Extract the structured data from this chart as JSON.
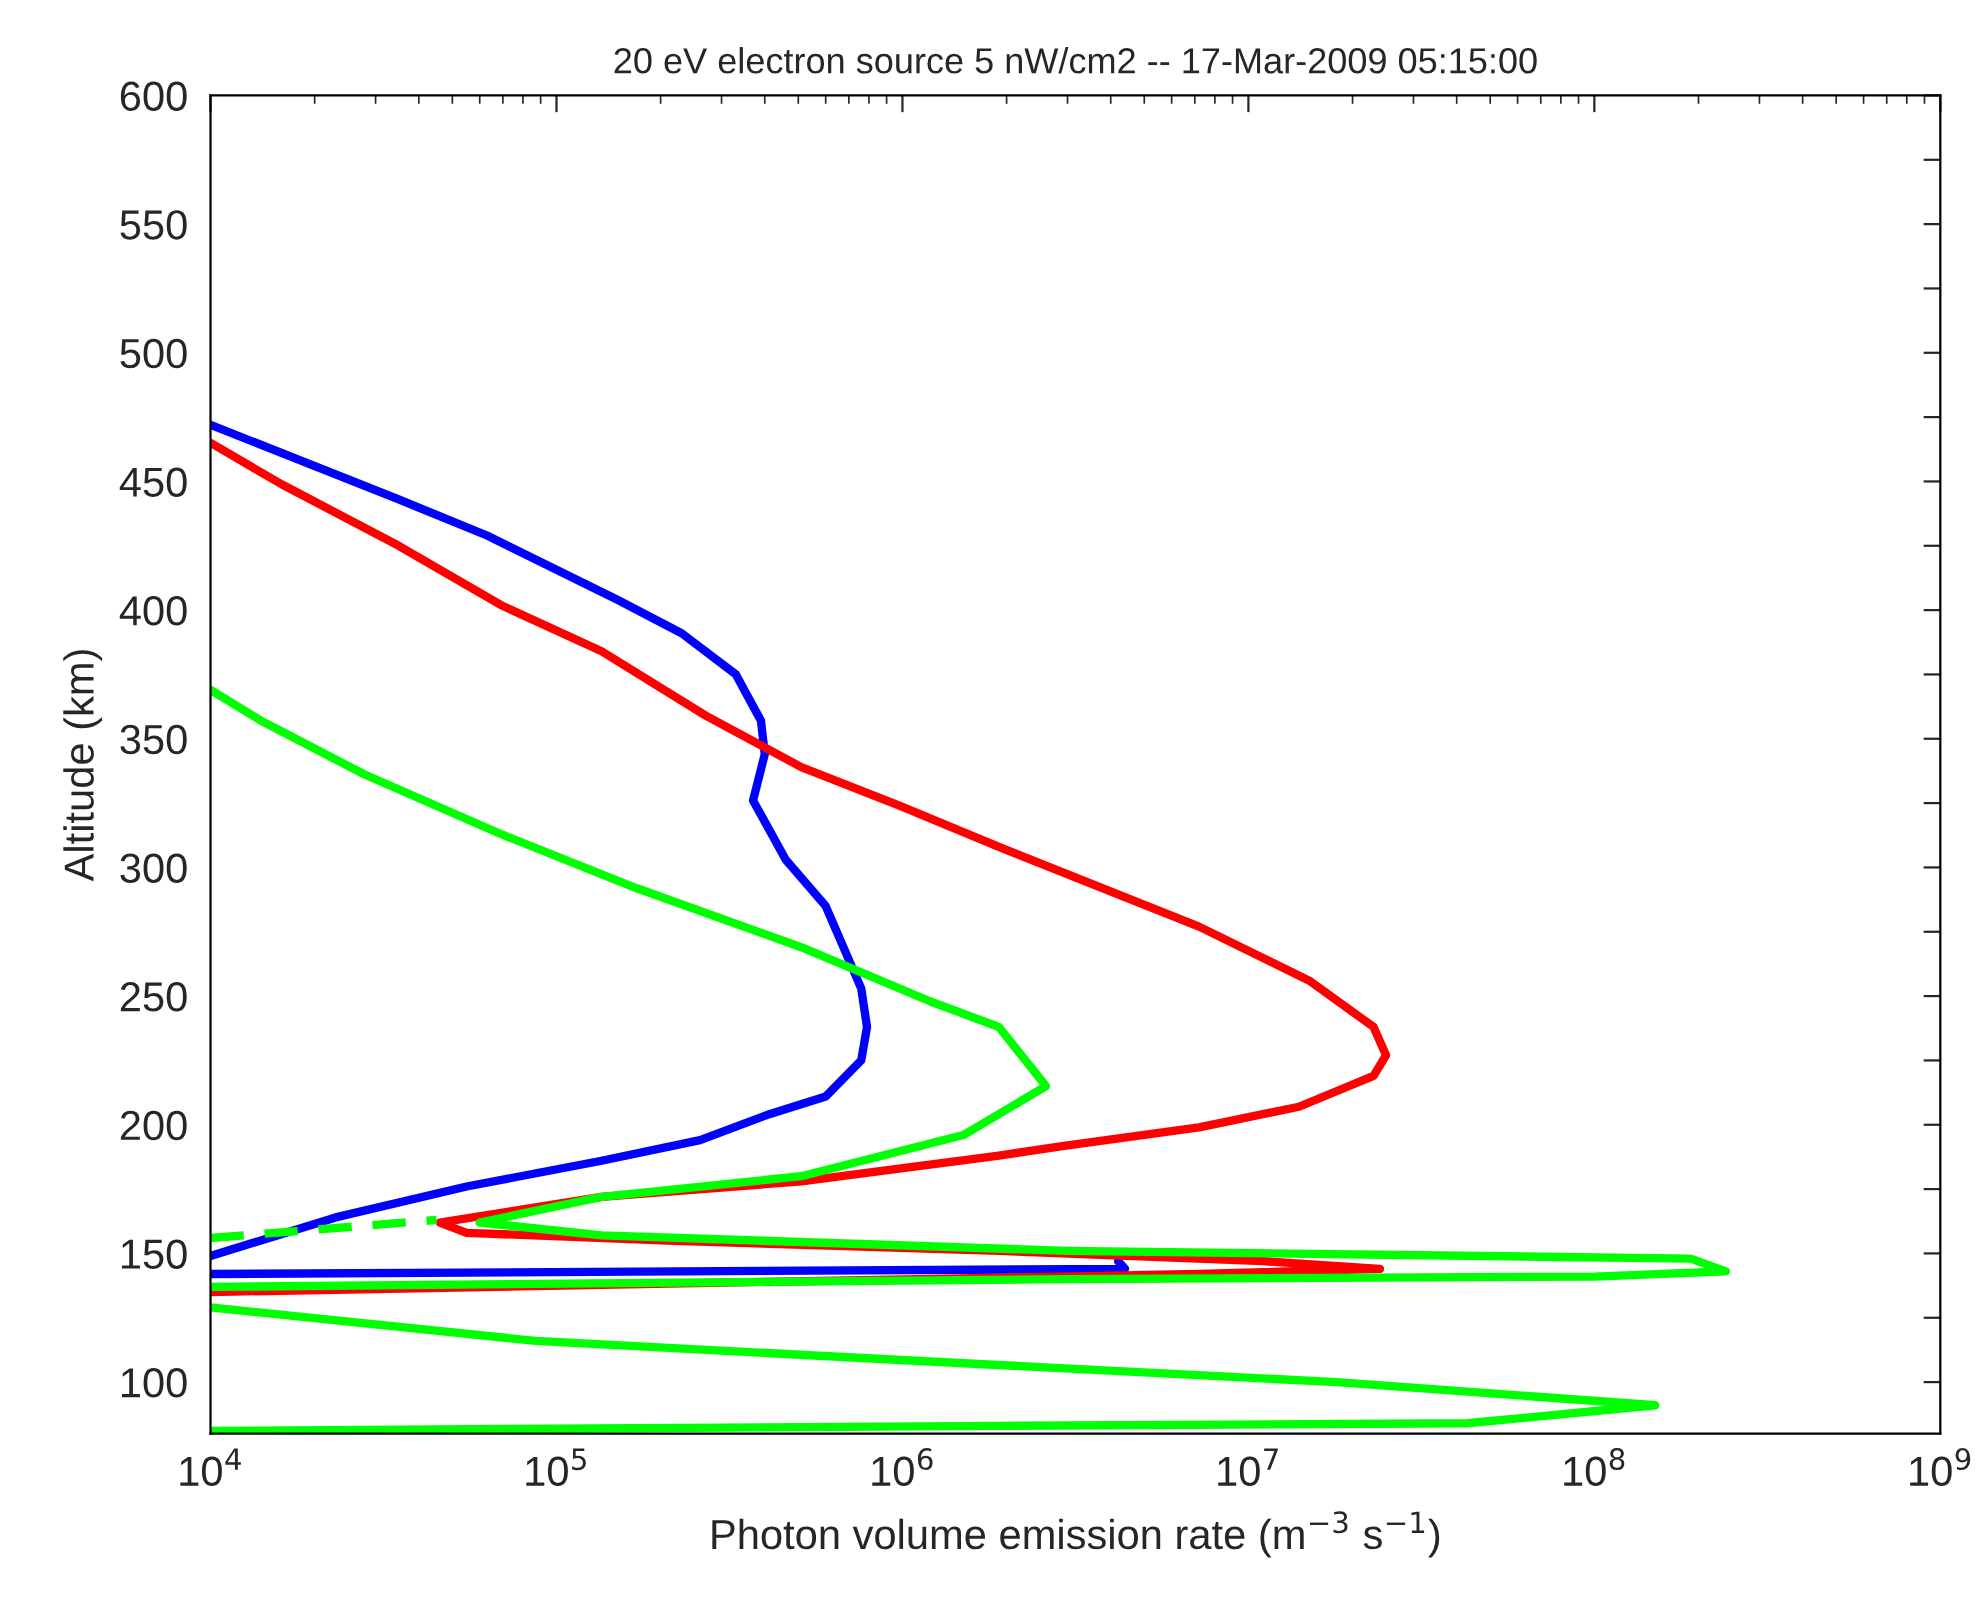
{
  "chart_data": {
    "type": "line",
    "title": "20 eV electron source 5 nW/cm2 -- 17-Mar-2009 05:15:00",
    "xlabel": "Photon volume emission rate (m$^{−3}$ s$^{−1}$)",
    "ylabel": "Altitude (km)",
    "log": "x",
    "xlim": [
      10000,
      1000000000
    ],
    "ylim": [
      80,
      600
    ],
    "xticks": [
      {
        "value": 10000,
        "label": "10$^{4}$"
      },
      {
        "value": 100000,
        "label": "10$^{5}$"
      },
      {
        "value": 1000000,
        "label": "10$^{6}$"
      },
      {
        "value": 10000000,
        "label": "10$^{7}$"
      },
      {
        "value": 100000000,
        "label": "10$^{8}$"
      },
      {
        "value": 1000000000,
        "label": "10$^{9}$"
      }
    ],
    "yticks": [
      100,
      {
        "value": 125,
        "label": null
      },
      150,
      {
        "value": 175,
        "label": null
      },
      200,
      {
        "value": 225,
        "label": null
      },
      250,
      {
        "value": 275,
        "label": null
      },
      300,
      {
        "value": 325,
        "label": null
      },
      350,
      {
        "value": 375,
        "label": null
      },
      400,
      {
        "value": 425,
        "label": null
      },
      450,
      {
        "value": 475,
        "label": null
      },
      500,
      {
        "value": 525,
        "label": null
      },
      550,
      {
        "value": 575,
        "label": null
      },
      600
    ],
    "series": [
      {
        "color": "#0000ff",
        "line_style": "solid",
        "x": [
          10000,
          35000,
          63000,
          150000,
          230000,
          330000,
          390000,
          400000,
          370000,
          460000,
          600000,
          760000,
          790000,
          760000,
          600000,
          410000,
          260000,
          135000,
          55000,
          23000,
          10000,
          null,
          10000,
          4400000,
          4200000
        ],
        "values": [
          472,
          443,
          429,
          404,
          391,
          375,
          357,
          344,
          326,
          303,
          285,
          253,
          238,
          225,
          211,
          204,
          194,
          186,
          176,
          164,
          149,
          null,
          142,
          144,
          147
        ]
      },
      {
        "color": "#ff0000",
        "line_style": "solid",
        "x": [
          10000,
          16000,
          35000,
          69000,
          135000,
          270000,
          510000,
          980000,
          1900000,
          7200000,
          15000000,
          23000000,
          25000000,
          23000000,
          14000000,
          7200000,
          3000000,
          1900000,
          510000,
          135000,
          46000,
          55000,
          210000,
          1900000,
          11000000,
          24000000,
          7200000,
          10000
        ],
        "values": [
          465,
          449,
          425,
          402,
          384,
          359,
          339,
          324,
          308,
          277,
          256,
          238,
          227,
          219,
          207,
          199,
          192,
          188,
          178,
          172,
          162,
          158,
          155,
          151,
          147,
          144,
          142,
          135
        ]
      },
      {
        "color": "#00ff00",
        "line_style": "solid",
        "x": [
          10000,
          14000,
          28000,
          69000,
          170000,
          510000,
          1200000,
          1900000,
          2600000,
          1500000,
          510000,
          135000,
          60000,
          135000,
          3000000,
          190000000,
          240000000,
          100000000,
          3000000,
          10000,
          null,
          10000,
          87000,
          1200000,
          18000000,
          150000000,
          43000000,
          1900000,
          10000
        ],
        "values": [
          369,
          357,
          336,
          313,
          292,
          269,
          248,
          238,
          215,
          196,
          180,
          172,
          162,
          157,
          151,
          148,
          143,
          141,
          140,
          137,
          null,
          129,
          116,
          108,
          100,
          91,
          84,
          83,
          81
        ]
      },
      {
        "color": "#00ff00",
        "line_style": "dashed",
        "x": [
          10000,
          45000
        ],
        "values": [
          156,
          163
        ]
      }
    ]
  }
}
